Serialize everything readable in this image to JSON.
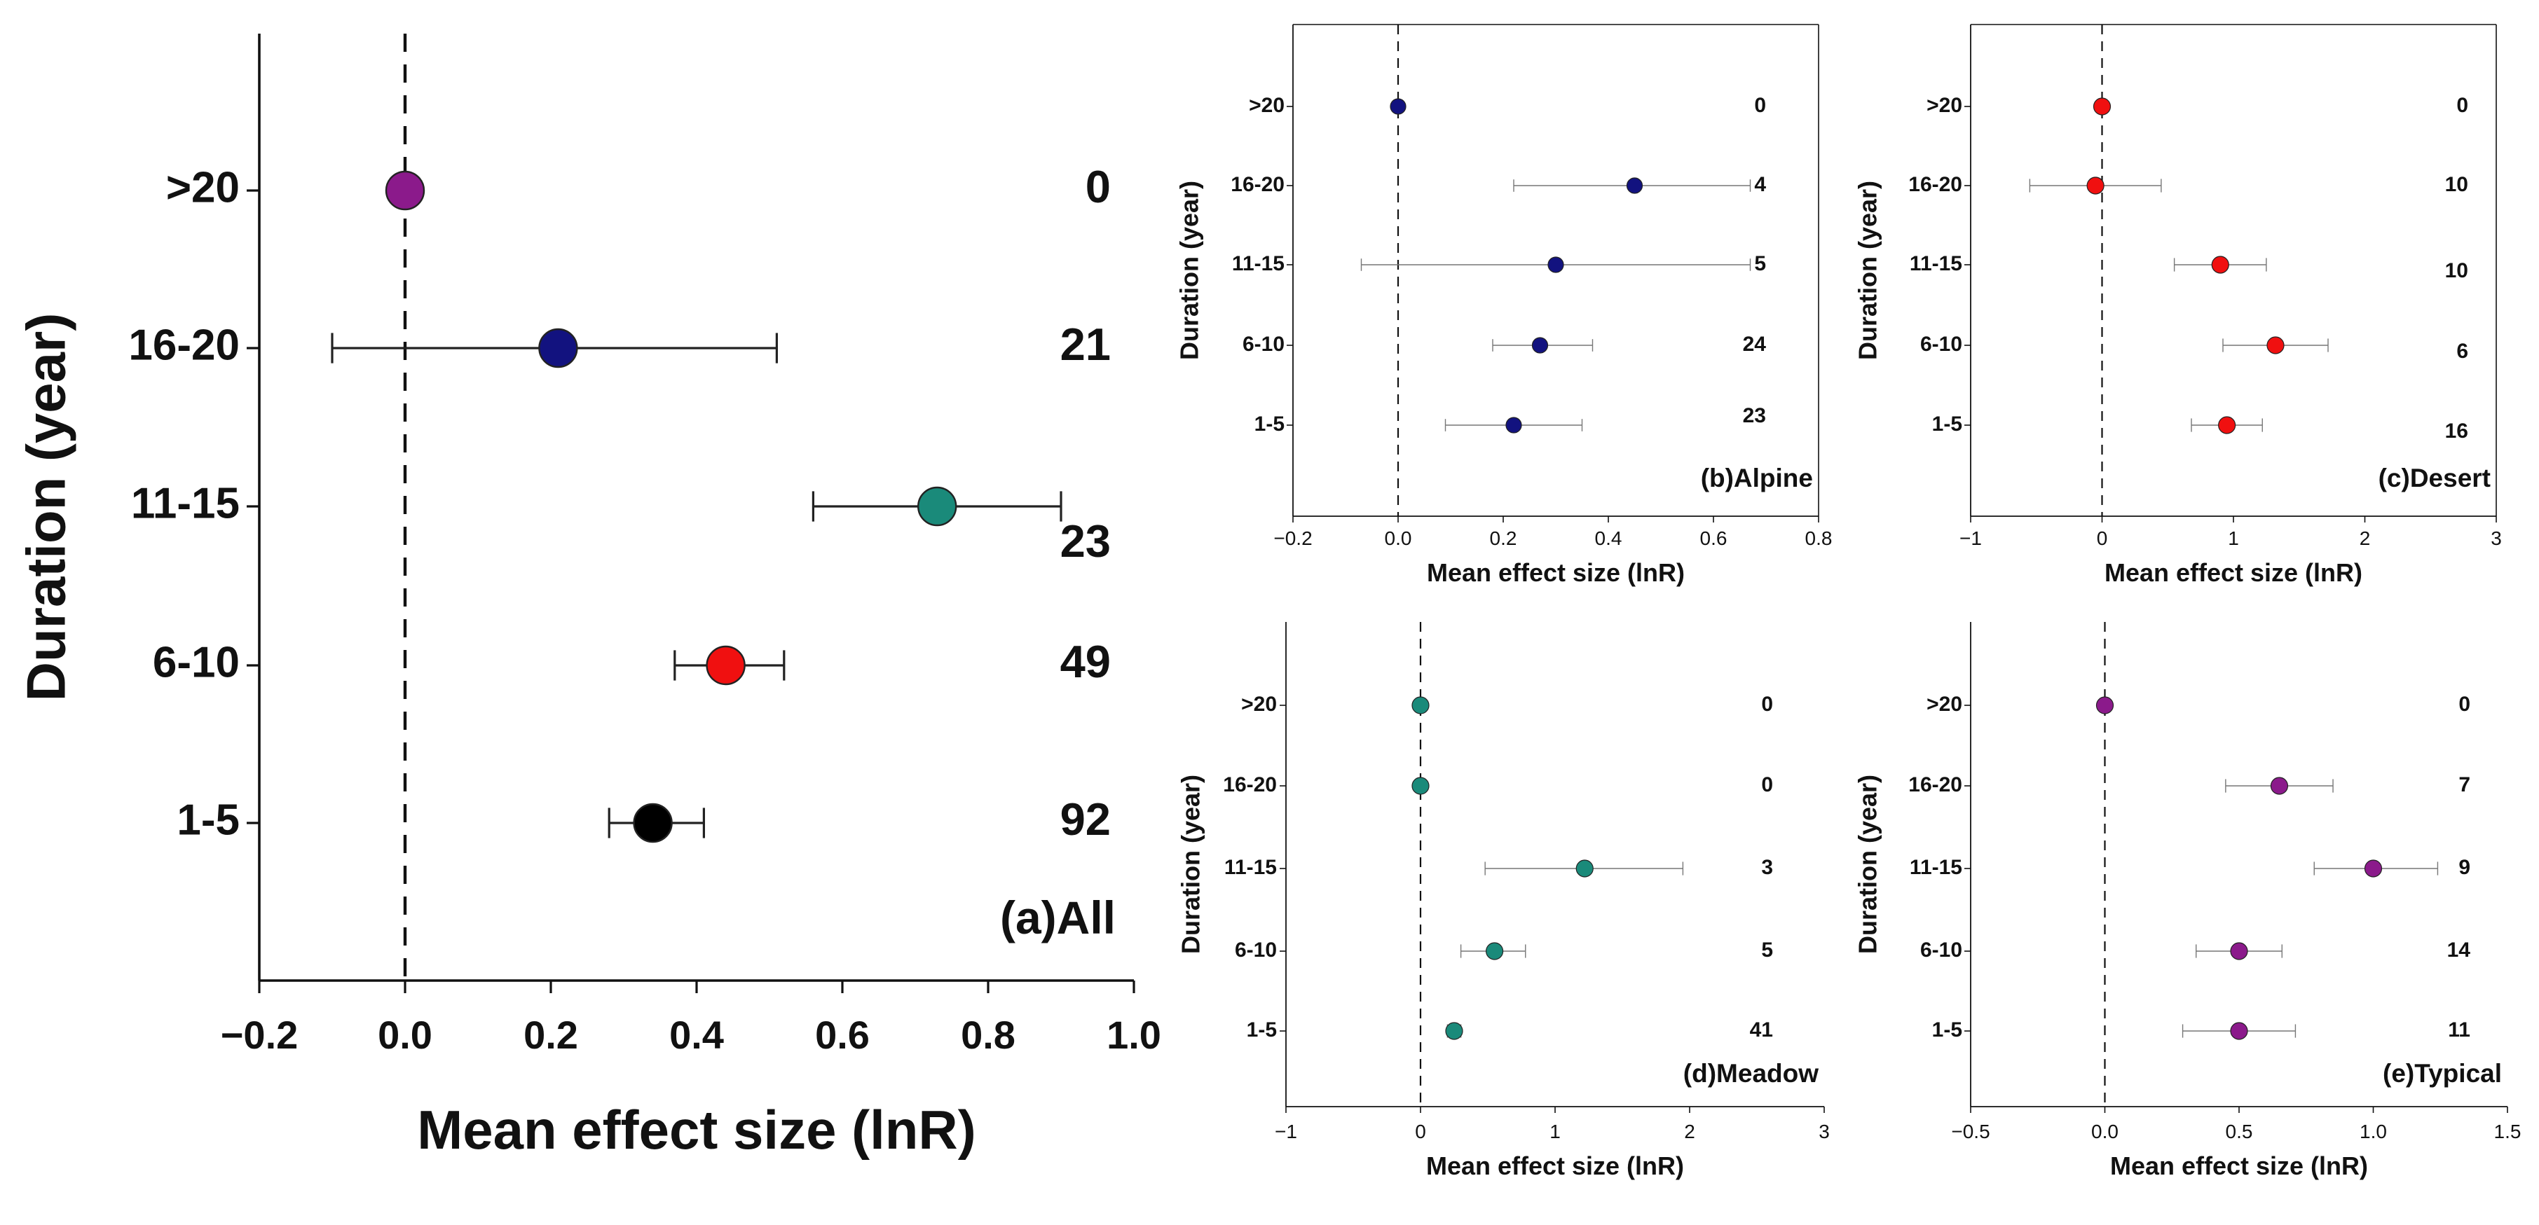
{
  "chart_data": [
    {
      "type": "scatter",
      "panel_label": "(a)All",
      "xlabel": "Mean effect size (lnR)",
      "ylabel": "Duration (year)",
      "xlim": [
        -0.2,
        1.0
      ],
      "xticks": [
        "−0.2",
        "0.0",
        "0.2",
        "0.4",
        "0.6",
        "0.8",
        "1.0"
      ],
      "xtick_values": [
        -0.2,
        0.0,
        0.2,
        0.4,
        0.6,
        0.8,
        1.0
      ],
      "categories": [
        ">20",
        "16-20",
        "11-15",
        "6-10",
        "1-5"
      ],
      "means": [
        0.0,
        0.21,
        0.73,
        0.44,
        0.34
      ],
      "ci_low": [
        null,
        -0.1,
        0.56,
        0.37,
        0.28
      ],
      "ci_high": [
        null,
        0.51,
        0.9,
        0.52,
        0.41
      ],
      "n": [
        "0",
        "21",
        "23",
        "49",
        "92"
      ],
      "colors": [
        "#8B1A8B",
        "#12127F",
        "#1A8A7A",
        "#F01010",
        "#000000"
      ],
      "reference_line_x": 0,
      "grid": false
    },
    {
      "type": "scatter",
      "panel_label": "(b)Alpine",
      "xlabel": "Mean effect size (lnR)",
      "ylabel": "Duration (year)",
      "xlim": [
        -0.2,
        0.8
      ],
      "xticks": [
        "−0.2",
        "0.0",
        "0.2",
        "0.4",
        "0.6",
        "0.8"
      ],
      "xtick_values": [
        -0.2,
        0.0,
        0.2,
        0.4,
        0.6,
        0.8
      ],
      "categories": [
        ">20",
        "16-20",
        "11-15",
        "6-10",
        "1-5"
      ],
      "means": [
        0.0,
        0.45,
        0.3,
        0.27,
        0.22
      ],
      "ci_low": [
        null,
        0.22,
        -0.07,
        0.18,
        0.09
      ],
      "ci_high": [
        null,
        0.67,
        0.67,
        0.37,
        0.35
      ],
      "n": [
        "0",
        "4",
        "5",
        "24",
        "23"
      ],
      "colors": [
        "#12127F",
        "#12127F",
        "#12127F",
        "#12127F",
        "#12127F"
      ],
      "reference_line_x": 0,
      "grid": false
    },
    {
      "type": "scatter",
      "panel_label": "(c)Desert",
      "xlabel": "Mean effect size (lnR)",
      "ylabel": "Duration (year)",
      "xlim": [
        -1,
        3
      ],
      "xticks": [
        "−1",
        "0",
        "1",
        "2",
        "3"
      ],
      "xtick_values": [
        -1,
        0,
        1,
        2,
        3
      ],
      "categories": [
        ">20",
        "16-20",
        "11-15",
        "6-10",
        "1-5"
      ],
      "means": [
        0.0,
        -0.05,
        0.9,
        1.32,
        0.95
      ],
      "ci_low": [
        null,
        -0.55,
        0.55,
        0.92,
        0.68
      ],
      "ci_high": [
        null,
        0.45,
        1.25,
        1.72,
        1.22
      ],
      "n": [
        "0",
        "10",
        "10",
        "6",
        "16"
      ],
      "colors": [
        "#F01010",
        "#F01010",
        "#F01010",
        "#F01010",
        "#F01010"
      ],
      "reference_line_x": 0,
      "grid": false
    },
    {
      "type": "scatter",
      "panel_label": "(d)Meadow",
      "xlabel": "Mean effect size (lnR)",
      "ylabel": "Duration (year)",
      "xlim": [
        -1,
        3
      ],
      "xticks": [
        "−1",
        "0",
        "1",
        "2",
        "3"
      ],
      "xtick_values": [
        -1,
        0,
        1,
        2,
        3
      ],
      "categories": [
        ">20",
        "16-20",
        "11-15",
        "6-10",
        "1-5"
      ],
      "means": [
        0.0,
        0.0,
        1.22,
        0.55,
        0.25
      ],
      "ci_low": [
        null,
        null,
        0.48,
        0.3,
        0.2
      ],
      "ci_high": [
        null,
        null,
        1.95,
        0.78,
        0.3
      ],
      "n": [
        "0",
        "0",
        "3",
        "5",
        "41"
      ],
      "colors": [
        "#1A8A7A",
        "#1A8A7A",
        "#1A8A7A",
        "#1A8A7A",
        "#1A8A7A"
      ],
      "reference_line_x": 0,
      "grid": false
    },
    {
      "type": "scatter",
      "panel_label": "(e)Typical",
      "xlabel": "Mean effect size (lnR)",
      "ylabel": "Duration (year)",
      "xlim": [
        -0.5,
        1.5
      ],
      "xticks": [
        "−0.5",
        "0.0",
        "0.5",
        "1.0",
        "1.5"
      ],
      "xtick_values": [
        -0.5,
        0.0,
        0.5,
        1.0,
        1.5
      ],
      "categories": [
        ">20",
        "16-20",
        "11-15",
        "6-10",
        "1-5"
      ],
      "means": [
        0.0,
        0.65,
        1.0,
        0.5,
        0.5
      ],
      "ci_low": [
        null,
        0.45,
        0.78,
        0.34,
        0.29
      ],
      "ci_high": [
        null,
        0.85,
        1.24,
        0.66,
        0.71
      ],
      "n": [
        "0",
        "7",
        "9",
        "14",
        "11"
      ],
      "colors": [
        "#8B1A8B",
        "#8B1A8B",
        "#8B1A8B",
        "#8B1A8B",
        "#8B1A8B"
      ],
      "reference_line_x": 0,
      "grid": false
    }
  ]
}
